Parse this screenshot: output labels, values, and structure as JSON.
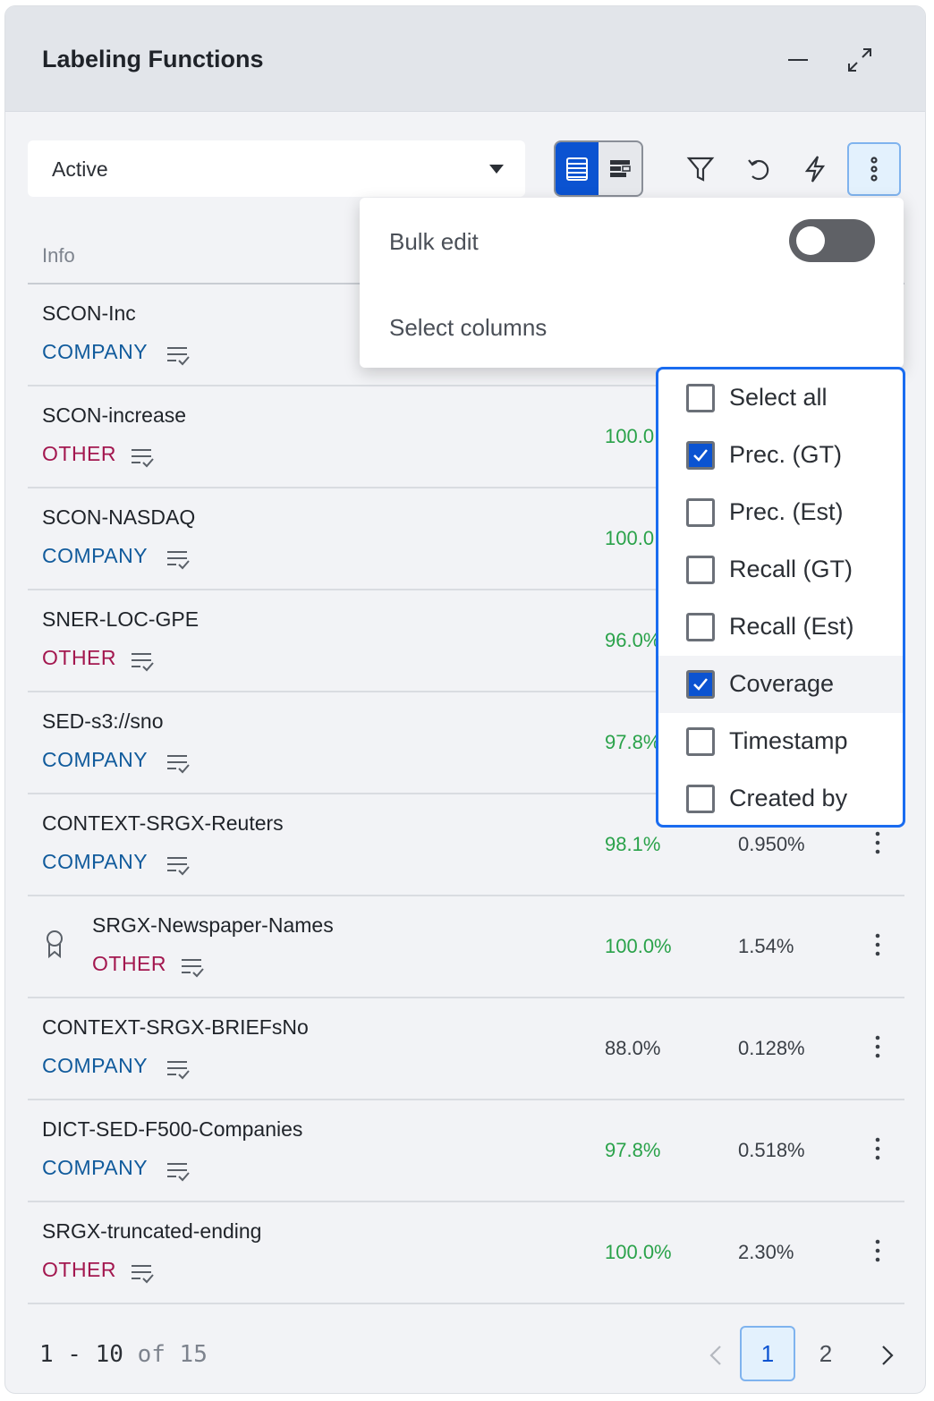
{
  "panel": {
    "title": "Labeling Functions",
    "minimize_icon": "minimize-icon",
    "expand_icon": "expand-icon"
  },
  "toolbar": {
    "filter_value": "Active",
    "view_modes": [
      "table-view-icon",
      "timeline-view-icon"
    ],
    "active_view": "table-view-icon",
    "tools": [
      "filter-icon",
      "refresh-icon",
      "lightning-icon",
      "more-vert-icon"
    ]
  },
  "table": {
    "column_info": "Info",
    "rows": [
      {
        "name": "SCON-Inc",
        "tag": "COMPANY",
        "prec": "",
        "coverage": "",
        "prec_color": "green"
      },
      {
        "name": "SCON-increase",
        "tag": "OTHER",
        "prec": "100.0",
        "coverage": "",
        "prec_color": "green"
      },
      {
        "name": "SCON-NASDAQ",
        "tag": "COMPANY",
        "prec": "100.0",
        "coverage": "",
        "prec_color": "green"
      },
      {
        "name": "SNER-LOC-GPE",
        "tag": "OTHER",
        "prec": "96.0%",
        "coverage": "",
        "prec_color": "green"
      },
      {
        "name": "SED-s3://sno",
        "tag": "COMPANY",
        "prec": "97.8%",
        "coverage": "",
        "prec_color": "green"
      },
      {
        "name": "CONTEXT-SRGX-Reuters",
        "tag": "COMPANY",
        "prec": "98.1%",
        "coverage": "0.950%",
        "prec_color": "green"
      },
      {
        "name": "SRGX-Newspaper-Names",
        "tag": "OTHER",
        "prec": "100.0%",
        "coverage": "1.54%",
        "prec_color": "green",
        "award": true
      },
      {
        "name": "CONTEXT-SRGX-BRIEFsNo",
        "tag": "COMPANY",
        "prec": "88.0%",
        "coverage": "0.128%",
        "prec_color": "gray"
      },
      {
        "name": "DICT-SED-F500-Companies",
        "tag": "COMPANY",
        "prec": "97.8%",
        "coverage": "0.518%",
        "prec_color": "green"
      },
      {
        "name": "SRGX-truncated-ending",
        "tag": "OTHER",
        "prec": "100.0%",
        "coverage": "2.30%",
        "prec_color": "green"
      }
    ]
  },
  "pagination": {
    "range": "1 - 10",
    "of": "of",
    "total": "15",
    "pages": [
      "1",
      "2"
    ],
    "current_page": "1"
  },
  "menu": {
    "bulk_edit": "Bulk edit",
    "bulk_edit_on": false,
    "select_columns": "Select columns"
  },
  "columns_popover": {
    "options": [
      {
        "label": "Select all",
        "checked": false
      },
      {
        "label": "Prec. (GT)",
        "checked": true
      },
      {
        "label": "Prec. (Est)",
        "checked": false
      },
      {
        "label": "Recall (GT)",
        "checked": false
      },
      {
        "label": "Recall (Est)",
        "checked": false
      },
      {
        "label": "Coverage",
        "checked": true,
        "hover": true
      },
      {
        "label": "Timestamp",
        "checked": false
      },
      {
        "label": "Created by",
        "checked": false
      }
    ]
  },
  "colors": {
    "accent": "#0b53d1",
    "company_tag": "#115b9c",
    "other_tag": "#a3174f",
    "positive": "#2aa24a"
  }
}
